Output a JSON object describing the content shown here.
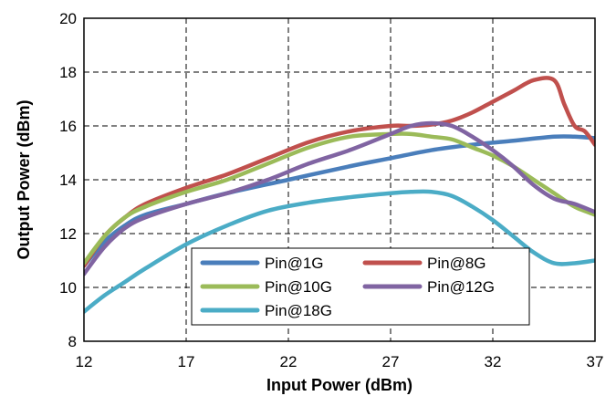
{
  "chart_data": {
    "type": "line",
    "title": "",
    "xlabel": "Input Power (dBm)",
    "ylabel": "Output Power (dBm)",
    "xlim": [
      12,
      37
    ],
    "ylim": [
      8,
      20
    ],
    "xticks": [
      12,
      17,
      22,
      27,
      32,
      37
    ],
    "yticks": [
      8,
      10,
      12,
      14,
      16,
      18,
      20
    ],
    "grid": true,
    "legend_position": "bottom-center",
    "series": [
      {
        "name": "Pin@1G",
        "color": "#4a7ebb",
        "x": [
          12,
          13,
          14,
          15,
          17,
          19,
          22,
          25,
          27,
          29,
          31,
          33,
          35,
          36,
          37
        ],
        "y": [
          10.8,
          11.7,
          12.3,
          12.7,
          13.1,
          13.5,
          14.0,
          14.5,
          14.8,
          15.1,
          15.3,
          15.45,
          15.6,
          15.6,
          15.55
        ]
      },
      {
        "name": "Pin@8G",
        "color": "#c0504d",
        "x": [
          12,
          13,
          14,
          15,
          17,
          19,
          21,
          23,
          25,
          27,
          28,
          29,
          30,
          31,
          32,
          33,
          34,
          35,
          35.5,
          36,
          36.5,
          37
        ],
        "y": [
          10.8,
          11.9,
          12.6,
          13.1,
          13.7,
          14.2,
          14.8,
          15.4,
          15.8,
          16.0,
          16.0,
          16.05,
          16.2,
          16.5,
          16.9,
          17.3,
          17.7,
          17.7,
          16.8,
          16.0,
          15.8,
          15.3
        ]
      },
      {
        "name": "Pin@10G",
        "color": "#9bbb59",
        "x": [
          12,
          13,
          14,
          15,
          17,
          19,
          21,
          23,
          25,
          27,
          28,
          29,
          30,
          31,
          32,
          33,
          34,
          35,
          36,
          37
        ],
        "y": [
          10.9,
          11.9,
          12.6,
          13.0,
          13.55,
          14.0,
          14.6,
          15.2,
          15.6,
          15.7,
          15.7,
          15.6,
          15.5,
          15.2,
          14.9,
          14.5,
          14.0,
          13.5,
          13.0,
          12.7
        ]
      },
      {
        "name": "Pin@12G",
        "color": "#8064a2",
        "x": [
          12,
          13,
          14,
          15,
          17,
          19,
          21,
          23,
          25,
          27,
          28,
          29,
          30,
          31,
          32,
          33,
          34,
          35,
          36,
          37
        ],
        "y": [
          10.5,
          11.5,
          12.2,
          12.6,
          13.1,
          13.5,
          14.0,
          14.6,
          15.1,
          15.7,
          16.0,
          16.1,
          16.0,
          15.6,
          15.1,
          14.5,
          13.8,
          13.3,
          13.1,
          12.8
        ]
      },
      {
        "name": "Pin@18G",
        "color": "#4bacc6",
        "x": [
          12,
          13,
          14,
          15,
          17,
          19,
          21,
          23,
          25,
          27,
          28,
          29,
          30,
          31,
          32,
          33,
          34,
          35,
          36,
          37
        ],
        "y": [
          9.1,
          9.7,
          10.2,
          10.7,
          11.6,
          12.3,
          12.85,
          13.15,
          13.35,
          13.5,
          13.55,
          13.55,
          13.4,
          13.0,
          12.5,
          11.9,
          11.3,
          10.9,
          10.9,
          11.0
        ]
      }
    ]
  }
}
